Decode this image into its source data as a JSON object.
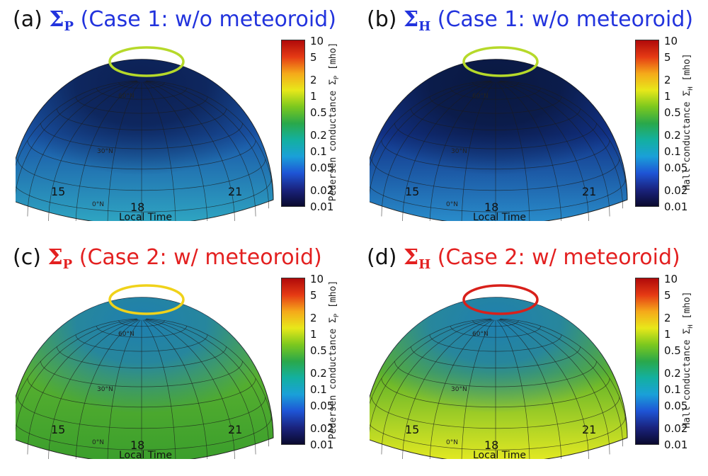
{
  "colorbar": {
    "ticks": [
      "10",
      "5",
      "2",
      "1",
      "0.5",
      "0.2",
      "0.1",
      "0.05",
      "0.02",
      "0.01"
    ],
    "tick_values": [
      10,
      5,
      2,
      1,
      0.5,
      0.2,
      0.1,
      0.05,
      0.02,
      0.01
    ],
    "range": [
      0.01,
      10
    ],
    "scale": "log",
    "colormap": [
      "#0a0a2e",
      "#1a237e",
      "#1e55d6",
      "#1aa0d8",
      "#13b0a0",
      "#2aa84a",
      "#7cc81e",
      "#e8e81a",
      "#f5a91a",
      "#e53a14",
      "#b00a0a"
    ]
  },
  "lat_labels": [
    "60°N",
    "30°N",
    "0°N"
  ],
  "hour_labels": [
    "15",
    "18",
    "21"
  ],
  "panels": [
    {
      "letter": "(a)",
      "symbol": "Σ",
      "sub": "P",
      "case": "(Case 1: w/o meteoroid)",
      "title_color": "#2233dd",
      "xlabel": "Local Time",
      "cb_title": "Pedersen conductance Σ",
      "cb_sub": "P",
      "cb_unit": " [mho]",
      "ring_color": "#b6d92a",
      "cap_color": "#0c1f52",
      "base_color": "#2fa7c2",
      "top_color": "#1a55a8"
    },
    {
      "letter": "(b)",
      "symbol": "Σ",
      "sub": "H",
      "case": "(Case 1: w/o meteoroid)",
      "title_color": "#2233dd",
      "xlabel": "Local Time",
      "cb_title": "Hall conductance Σ",
      "cb_sub": "H",
      "cb_unit": " [mho]",
      "ring_color": "#b6d92a",
      "cap_color": "#0a1840",
      "base_color": "#2a8fcc",
      "top_color": "#12338a"
    },
    {
      "letter": "(c)",
      "symbol": "Σ",
      "sub": "P",
      "case": "(Case 2: w/ meteoroid)",
      "title_color": "#e32020",
      "xlabel": "Local Time",
      "cb_title": "Pedersen conductance Σ",
      "cb_sub": "P",
      "cb_unit": " [mho]",
      "ring_color": "#f0d21a",
      "cap_color": "#1e7fb0",
      "base_color": "#3a9e2c",
      "top_color": "#58b030"
    },
    {
      "letter": "(d)",
      "symbol": "Σ",
      "sub": "H",
      "case": "(Case 2: w/ meteoroid)",
      "title_color": "#e32020",
      "xlabel": "Local Time",
      "cb_title": "Hall conductance Σ",
      "cb_sub": "H",
      "cb_unit": " [mho]",
      "ring_color": "#d8201a",
      "cap_color": "#1e7fb0",
      "base_color": "#e6ea22",
      "top_color": "#5db22a"
    }
  ]
}
